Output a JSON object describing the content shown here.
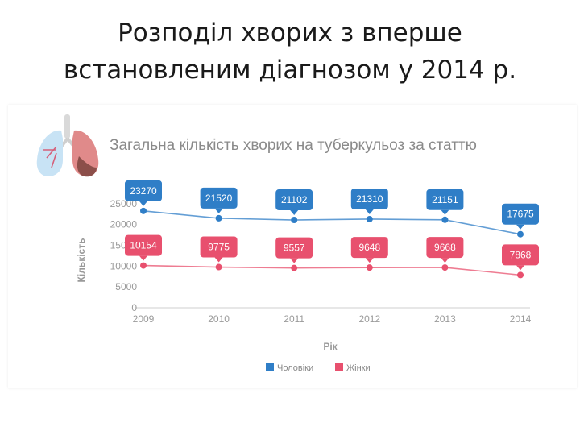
{
  "slide": {
    "title_line1": "Розподіл хворих з вперше",
    "title_line2": "встановленим діагнозом у 2014 р."
  },
  "chart_data": {
    "type": "line",
    "title": "Загальна кількість хворих на туберкульоз за статтю",
    "xlabel": "Рік",
    "ylabel": "Кількість",
    "x": [
      "2009",
      "2010",
      "2011",
      "2012",
      "2013",
      "2014"
    ],
    "ylim": [
      0,
      27500
    ],
    "yticks": [
      0,
      5000,
      10000,
      15000,
      20000,
      25000
    ],
    "grid": false,
    "legend_position": "bottom",
    "data_labels": true,
    "series": [
      {
        "name": "Чоловіки",
        "color": "#2f7ec7",
        "values": [
          23270,
          21520,
          21102,
          21310,
          21151,
          17675
        ]
      },
      {
        "name": "Жінки",
        "color": "#e8506e",
        "values": [
          10154,
          9775,
          9557,
          9648,
          9668,
          7868
        ]
      }
    ],
    "icon": "lungs-icon"
  }
}
